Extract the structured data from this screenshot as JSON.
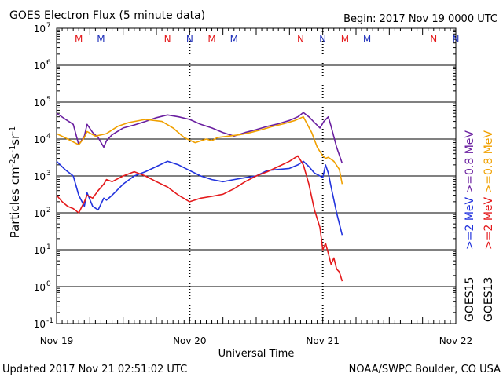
{
  "chart_data": {
    "type": "line",
    "title": "GOES Electron Flux (5 minute data)",
    "begin": "Begin: 2017 Nov 19 0000 UTC",
    "xlabel": "Universal Time",
    "ylabel": "Particles cm",
    "ylabel_sup1": "-2",
    "ylabel_mid": "s",
    "ylabel_sup2": "-1",
    "ylabel_end": "sr",
    "ylabel_sup3": "-1",
    "updated": "Updated 2017 Nov 21 02:51:02 UTC",
    "credit": "NOAA/SWPC Boulder, CO USA",
    "x_unit": "hours since 2017 Nov 19 0000 UTC",
    "xlim": [
      0,
      72
    ],
    "ylim_log10": [
      -1,
      7
    ],
    "x_ticks": [
      {
        "value": 0,
        "label": "Nov 19"
      },
      {
        "value": 24,
        "label": "Nov 20"
      },
      {
        "value": 48,
        "label": "Nov 21"
      },
      {
        "value": 72,
        "label": "Nov 22"
      }
    ],
    "y_ticks": [
      {
        "exp": -1,
        "base": "10",
        "sup": "-1"
      },
      {
        "exp": 0,
        "base": "10",
        "sup": "0"
      },
      {
        "exp": 1,
        "base": "10",
        "sup": "1"
      },
      {
        "exp": 2,
        "base": "10",
        "sup": "2"
      },
      {
        "exp": 3,
        "base": "10",
        "sup": "3"
      },
      {
        "exp": 4,
        "base": "10",
        "sup": "4"
      },
      {
        "exp": 5,
        "base": "10",
        "sup": "5"
      },
      {
        "exp": 6,
        "base": "10",
        "sup": "6"
      },
      {
        "exp": 7,
        "base": "10",
        "sup": "7"
      }
    ],
    "threshold": 1000,
    "top_markers": [
      {
        "x": 4,
        "text": "M",
        "color": "#e41a1c"
      },
      {
        "x": 8,
        "text": "M",
        "color": "#2233bb"
      },
      {
        "x": 20,
        "text": "N",
        "color": "#e41a1c"
      },
      {
        "x": 24,
        "text": "N",
        "color": "#2233bb"
      },
      {
        "x": 28,
        "text": "M",
        "color": "#e41a1c"
      },
      {
        "x": 32,
        "text": "M",
        "color": "#2233bb"
      },
      {
        "x": 44,
        "text": "N",
        "color": "#e41a1c"
      },
      {
        "x": 48,
        "text": "N",
        "color": "#2233bb"
      },
      {
        "x": 52,
        "text": "M",
        "color": "#e41a1c"
      },
      {
        "x": 56,
        "text": "M",
        "color": "#2233bb"
      },
      {
        "x": 68,
        "text": "N",
        "color": "#e41a1c"
      },
      {
        "x": 72,
        "text": "N",
        "color": "#2233bb"
      }
    ],
    "legend": [
      {
        "sat": "GOES15",
        "energy": ">=0.8 MeV",
        "color": "#6a1fa0"
      },
      {
        "sat": "GOES13",
        "energy": ">=0.8 MeV",
        "color": "#f0a000"
      },
      {
        "sat": "GOES15",
        "energy": ">=2 MeV",
        "color": "#2233dd"
      },
      {
        "sat": "GOES13",
        "energy": ">=2 MeV",
        "color": "#e41a1c"
      }
    ],
    "series": [
      {
        "name": "GOES15 >=0.8 MeV",
        "color": "#6a1fa0",
        "x": [
          0,
          1.5,
          3,
          4,
          5,
          5.5,
          6.5,
          7.5,
          8.5,
          9,
          10,
          12,
          14,
          16,
          18,
          20,
          22,
          24,
          26,
          28,
          30,
          32,
          34,
          36,
          38,
          40,
          42,
          43.5,
          44.5,
          45.5,
          46.5,
          47.5,
          48.2,
          49,
          49.5,
          50.5,
          51.5
        ],
        "y": [
          50000,
          35000,
          25000,
          7000,
          12000,
          25000,
          15000,
          11000,
          6000,
          9000,
          13000,
          20000,
          24000,
          30000,
          38000,
          45000,
          40000,
          34000,
          25000,
          20000,
          15000,
          12000,
          15000,
          18000,
          22000,
          26000,
          32000,
          40000,
          52000,
          40000,
          28000,
          20000,
          30000,
          40000,
          22000,
          6000,
          2200
        ]
      },
      {
        "name": "GOES13 >=0.8 MeV",
        "color": "#f0a000",
        "x": [
          0,
          2,
          4,
          5,
          5.5,
          7,
          9,
          11,
          13,
          16,
          19,
          21,
          23,
          25,
          27,
          28,
          29,
          31,
          33,
          35,
          37,
          39,
          41,
          43,
          44.5,
          46,
          47,
          48,
          48.5,
          49,
          50,
          51,
          51.5
        ],
        "y": [
          14000,
          10000,
          7000,
          11000,
          16000,
          12000,
          14000,
          22000,
          28000,
          34000,
          30000,
          20000,
          11000,
          8000,
          10000,
          9000,
          11000,
          12000,
          13000,
          15000,
          18000,
          22000,
          26000,
          32000,
          40000,
          15000,
          6000,
          3500,
          3000,
          3200,
          2500,
          1500,
          600
        ]
      },
      {
        "name": "GOES15 >=2 MeV",
        "color": "#2233dd",
        "x": [
          0,
          1.5,
          3,
          4,
          5,
          5.5,
          6.5,
          7.5,
          8.5,
          9,
          10,
          12,
          14,
          16,
          18,
          20,
          22,
          24,
          26,
          28,
          30,
          32,
          34,
          36,
          38,
          40,
          42,
          43.5,
          44.5,
          45.5,
          46.5,
          47.5,
          48,
          48.5,
          49,
          49.5,
          50.5,
          51.5
        ],
        "y": [
          2500,
          1500,
          1000,
          300,
          150,
          350,
          150,
          120,
          250,
          220,
          300,
          600,
          1000,
          1300,
          1800,
          2500,
          2000,
          1400,
          1000,
          800,
          700,
          800,
          900,
          1000,
          1400,
          1500,
          1600,
          2000,
          2500,
          1800,
          1200,
          1000,
          900,
          2000,
          1200,
          500,
          100,
          25
        ]
      },
      {
        "name": "GOES13 >=2 MeV",
        "color": "#e41a1c",
        "x": [
          0,
          1,
          2,
          3,
          4,
          5,
          5.5,
          6.5,
          7.5,
          8.5,
          9,
          10,
          12,
          14,
          16,
          18,
          20,
          22,
          24,
          26,
          28,
          30,
          32,
          34,
          36,
          38,
          40,
          42,
          43.5,
          44.5,
          45.5,
          46.5,
          47.5,
          48,
          48.5,
          49,
          49.5,
          50,
          50.5,
          51,
          51.5
        ],
        "y": [
          300,
          200,
          150,
          130,
          100,
          200,
          300,
          250,
          400,
          600,
          800,
          700,
          1000,
          1300,
          1000,
          700,
          500,
          300,
          200,
          250,
          280,
          320,
          450,
          700,
          1000,
          1300,
          1800,
          2500,
          3500,
          2000,
          600,
          120,
          40,
          10,
          15,
          8,
          4,
          6,
          3,
          2.5,
          1.4
        ]
      }
    ]
  }
}
